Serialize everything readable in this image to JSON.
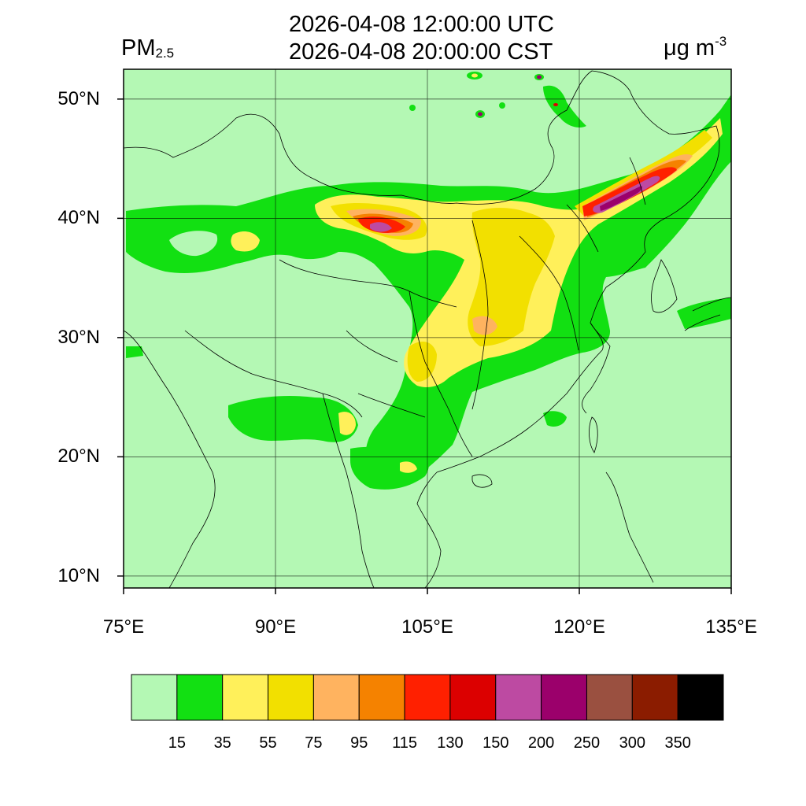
{
  "title": {
    "line1": "2026-04-08 12:00:00 UTC",
    "line2": "2026-04-08 20:00:00 CST"
  },
  "variable": {
    "name": "PM",
    "subscript": "2.5"
  },
  "units": {
    "base": "μg m",
    "exponent": "-3"
  },
  "map": {
    "lon_range": [
      75,
      135
    ],
    "lat_range": [
      9,
      52.5
    ],
    "background_color": "#b4f8b4",
    "lon_ticks": [
      {
        "value": 75,
        "label": "75°E"
      },
      {
        "value": 90,
        "label": "90°E"
      },
      {
        "value": 105,
        "label": "105°E"
      },
      {
        "value": 120,
        "label": "120°E"
      },
      {
        "value": 135,
        "label": "135°E"
      }
    ],
    "lat_ticks": [
      {
        "value": 10,
        "label": "10°N"
      },
      {
        "value": 20,
        "label": "20°N"
      },
      {
        "value": 30,
        "label": "30°N"
      },
      {
        "value": 40,
        "label": "40°N"
      },
      {
        "value": 50,
        "label": "50°N"
      }
    ]
  },
  "colorbar": {
    "colors": [
      "#b4f8b4",
      "#12e012",
      "#fff05a",
      "#f2e000",
      "#ffb35f",
      "#f58200",
      "#ff2000",
      "#dc0000",
      "#bd4aa2",
      "#9b006b",
      "#9a5040",
      "#8b1c00",
      "#000000"
    ],
    "labels": [
      "15",
      "35",
      "55",
      "75",
      "95",
      "115",
      "130",
      "150",
      "200",
      "250",
      "300",
      "350"
    ]
  }
}
